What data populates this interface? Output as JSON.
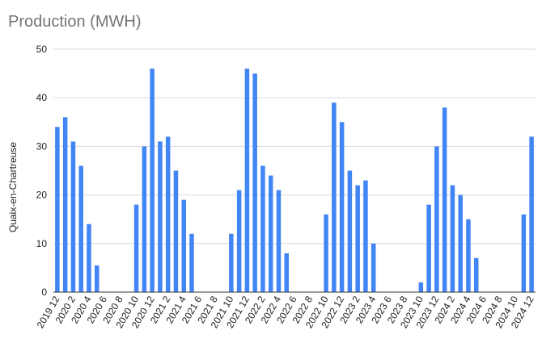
{
  "chart_data": {
    "type": "bar",
    "title": "Production (MWH)",
    "xlabel": "",
    "ylabel": "Quaix-en-Chartreuse",
    "ylim": [
      0,
      50
    ],
    "yticks": [
      0,
      10,
      20,
      30,
      40,
      50
    ],
    "grid": true,
    "legend": "none",
    "bar_color": "#4285f4",
    "grid_color": "#d9d9d9",
    "axis_color": "#333333",
    "title_color": "#757575",
    "categories": [
      "2019 12",
      "2020 1",
      "2020 2",
      "2020 3",
      "2020 4",
      "2020 5",
      "2020 6",
      "2020 7",
      "2020 8",
      "2020 9",
      "2020 10",
      "2020 11",
      "2020 12",
      "2021 1",
      "2021 2",
      "2021 3",
      "2021 4",
      "2021 5",
      "2021 6",
      "2021 7",
      "2021 8",
      "2021 9",
      "2021 10",
      "2021 11",
      "2021 12",
      "2022 1",
      "2022 2",
      "2022 3",
      "2022 4",
      "2022 5",
      "2022 6",
      "2022 7",
      "2022 8",
      "2022 9",
      "2022 10",
      "2022 11",
      "2022 12",
      "2023 1",
      "2023 2",
      "2023 3",
      "2023 4",
      "2023 5",
      "2023 6",
      "2023 7",
      "2023 8",
      "2023 9",
      "2023 10",
      "2023 11",
      "2023 12",
      "2024 1",
      "2024 2",
      "2024 3",
      "2024 4",
      "2024 5",
      "2024 6",
      "2024 7",
      "2024 8",
      "2024 9",
      "2024 10",
      "2024 11",
      "2024 12"
    ],
    "tick_labels": [
      "2019 12",
      "2020 2",
      "2020 4",
      "2020 6",
      "2020 8",
      "2020 10",
      "2020 12",
      "2021 2",
      "2021 4",
      "2021 6",
      "2021 8",
      "2021 10",
      "2021 12",
      "2022 2",
      "2022 4",
      "2022 6",
      "2022 8",
      "2022 10",
      "2022 12",
      "2023 2",
      "2023 4",
      "2023 6",
      "2023 8",
      "2023 10",
      "2023 12",
      "2024 2",
      "2024 4",
      "2024 6",
      "2024 8",
      "2024 10",
      "2024 12"
    ],
    "values": [
      34,
      36,
      31,
      26,
      14,
      5.5,
      0,
      0,
      0,
      0,
      18,
      30,
      46,
      31,
      32,
      25,
      19,
      12,
      0,
      0,
      0,
      0,
      12,
      21,
      46,
      45,
      26,
      24,
      21,
      8,
      0,
      0,
      0,
      0,
      16,
      39,
      35,
      25,
      22,
      23,
      10,
      0,
      0,
      0,
      0,
      0,
      2,
      18,
      30,
      38,
      22,
      20,
      15,
      7,
      0,
      0,
      0,
      0,
      0,
      16,
      32
    ]
  }
}
